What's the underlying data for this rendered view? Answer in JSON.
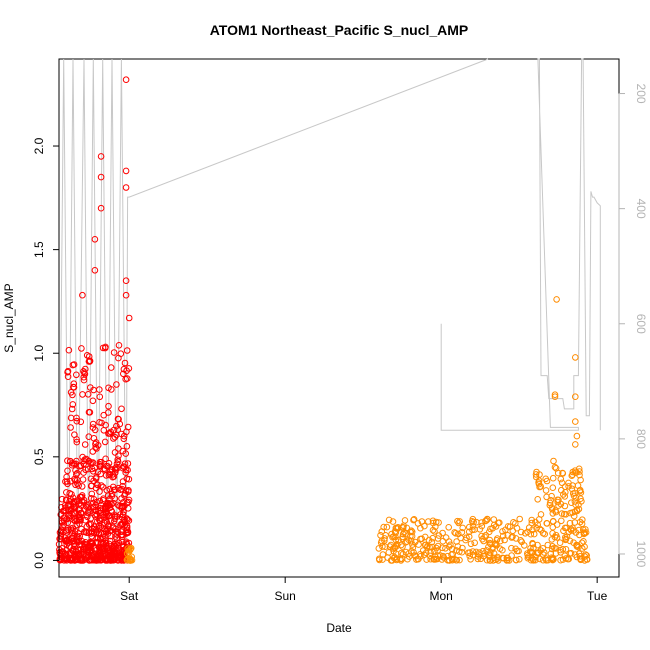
{
  "chart_data": {
    "type": "scatter",
    "title": "ATOM1 Northeast_Pacific S_nucl_AMP",
    "xlabel": "Date",
    "ylabel": "S_nucl_AMP",
    "x_ticks": [
      "Sat",
      "Sun",
      "Mon",
      "Tue"
    ],
    "x_range_days": [
      -0.45,
      3.14
    ],
    "ylim": [
      -0.08,
      2.42
    ],
    "y_ticks": [
      "0.0",
      "0.5",
      "1.0",
      "1.5",
      "2.0"
    ],
    "y2_ticks": [
      "200",
      "400",
      "600",
      "800",
      "1000"
    ],
    "y2_range": [
      1040,
      140
    ],
    "y2_reversed": true,
    "grid": false,
    "colors": {
      "flight1": "#ff0000",
      "flight2": "#ff8c00",
      "altitude": "#c8c8c8"
    },
    "series": [
      {
        "color": "#ff0000",
        "x_start_day": -0.45,
        "x_end_day": 0.0,
        "dense_low": [
          0.0,
          0.3
        ],
        "bands": [
          [
            0.4,
            1.05
          ],
          [
            0.25,
            0.5
          ]
        ],
        "outliers": [
          [
            -0.02,
            2.32
          ],
          [
            -0.02,
            1.88
          ],
          [
            -0.02,
            1.8
          ],
          [
            -0.18,
            1.95
          ],
          [
            -0.18,
            1.85
          ],
          [
            -0.18,
            1.7
          ],
          [
            -0.22,
            1.55
          ],
          [
            -0.22,
            1.4
          ],
          [
            -0.3,
            1.28
          ],
          [
            -0.02,
            1.35
          ],
          [
            -0.02,
            1.28
          ],
          [
            0.0,
            1.17
          ]
        ]
      },
      {
        "color": "#ff8c00",
        "x_start_day": 0.0,
        "x_end_day": 3.0,
        "clusters": [
          {
            "x": [
              -0.02,
              0.02
            ],
            "y": [
              0.0,
              0.06
            ]
          },
          {
            "x": [
              1.6,
              2.95
            ],
            "y": [
              0.0,
              0.2
            ]
          }
        ],
        "outliers": [
          [
            2.74,
            1.26
          ],
          [
            2.73,
            0.8
          ],
          [
            2.73,
            0.79
          ],
          [
            2.86,
            0.98
          ],
          [
            2.86,
            0.79
          ],
          [
            2.86,
            0.67
          ],
          [
            2.87,
            0.6
          ],
          [
            2.86,
            0.56
          ],
          [
            2.72,
            0.48
          ],
          [
            2.73,
            0.45
          ],
          [
            2.78,
            0.42
          ]
        ]
      }
    ],
    "altitude_line": {
      "color": "#c8c8c8",
      "axis": "right"
    }
  }
}
